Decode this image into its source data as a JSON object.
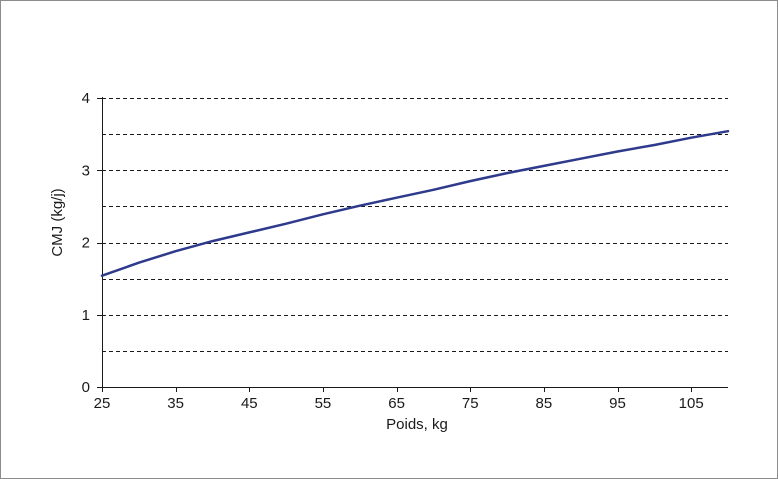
{
  "chart_data": {
    "type": "line",
    "title": "",
    "xlabel": "Poids, kg",
    "ylabel": "CMJ (kg/j)",
    "xlim": [
      25,
      110
    ],
    "ylim": [
      0,
      4
    ],
    "x_ticks": [
      25,
      35,
      45,
      55,
      65,
      75,
      85,
      95,
      105
    ],
    "y_ticks": [
      0,
      1,
      2,
      3,
      4
    ],
    "gridlines_y": [
      0.5,
      1,
      1.5,
      2,
      2.5,
      3,
      3.5,
      4
    ],
    "grid": true,
    "grid_style": "dashed",
    "legend": "none",
    "series": [
      {
        "x": [
          25,
          30,
          35,
          40,
          45,
          50,
          55,
          60,
          65,
          70,
          75,
          80,
          85,
          90,
          95,
          100,
          105,
          110
        ],
        "y": [
          1.54,
          1.72,
          1.88,
          2.02,
          2.14,
          2.26,
          2.39,
          2.51,
          2.62,
          2.73,
          2.85,
          2.96,
          3.06,
          3.16,
          3.26,
          3.35,
          3.45,
          3.54
        ],
        "color": "#2e3a8c"
      }
    ],
    "colors": {
      "line": "#2e3a8c",
      "axis": "#1a1a1a",
      "grid": "#1a1a1a",
      "frame": "#8c8c8c"
    }
  }
}
